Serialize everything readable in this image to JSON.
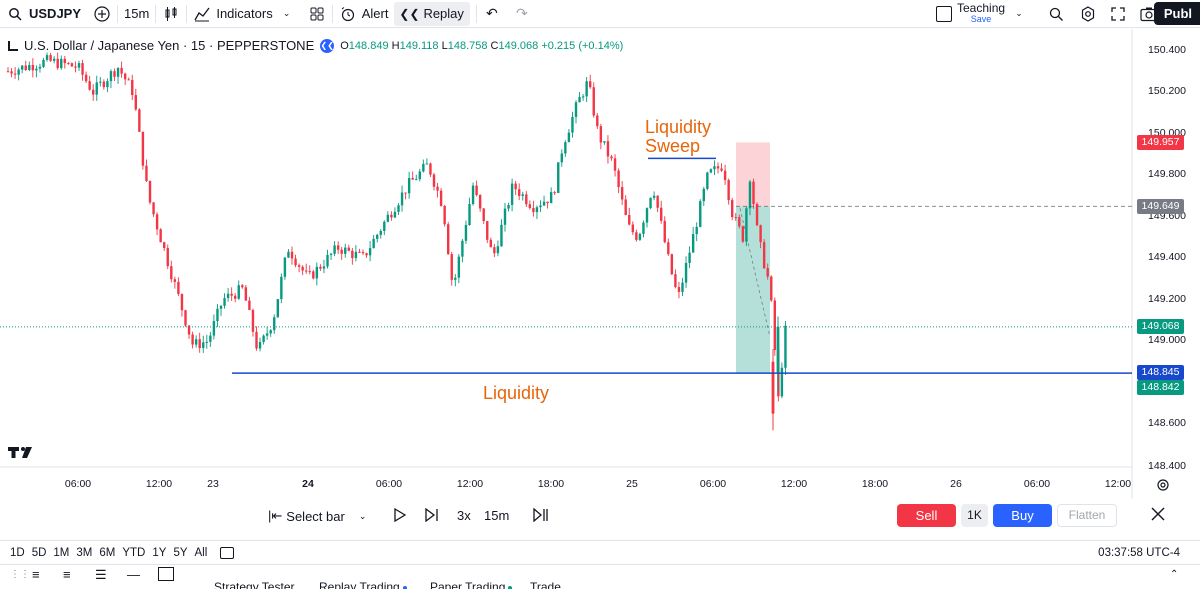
{
  "topbar": {
    "symbol": "USDJPY",
    "interval": "15m",
    "indicators_label": "Indicators",
    "alert_label": "Alert",
    "replay_label": "Replay",
    "layout_name": "Teaching",
    "layout_status": "Save",
    "publish_label": "Publ"
  },
  "legend": {
    "title": "U.S. Dollar / Japanese Yen · 15 · PEPPERSTONE",
    "open_key": "O",
    "open": "148.849",
    "high_key": "H",
    "high": "149.118",
    "low_key": "L",
    "low": "148.758",
    "close_key": "C",
    "close": "149.068",
    "change": "+0.215 (+0.14%)"
  },
  "annotations": {
    "sweep_line1": "Liquidity",
    "sweep_line2": "Sweep",
    "liquidity": "Liquidity"
  },
  "price_axis": {
    "ticks": [
      "150.400",
      "150.200",
      "150.000",
      "149.800",
      "149.600",
      "149.400",
      "149.200",
      "149.000",
      "148.600",
      "148.400"
    ],
    "tag_stop": "149.957",
    "tag_entry": "149.649",
    "tag_last": "149.068",
    "tag_line": "148.845",
    "tag_target": "148.842"
  },
  "time_axis": [
    "06:00",
    "12:00",
    "23",
    "24",
    "06:00",
    "12:00",
    "18:00",
    "25",
    "06:00",
    "12:00",
    "18:00",
    "26",
    "06:00",
    "12:00"
  ],
  "replay_bar": {
    "select_bar": "Select bar",
    "speed": "3x",
    "interval": "15m",
    "sell": "Sell",
    "quantity": "1K",
    "buy": "Buy",
    "flatten": "Flatten"
  },
  "range_bar": {
    "ranges": [
      "1D",
      "5D",
      "1M",
      "3M",
      "6M",
      "YTD",
      "1Y",
      "5Y",
      "All"
    ],
    "clock": "03:37:58 UTC-4"
  },
  "bottom_tabs": [
    "Strategy Tester",
    "Replay Trading",
    "Paper Trading",
    "Trade"
  ],
  "colors": {
    "up": "#089981",
    "down": "#f23645",
    "liquidity_line": "#1848cc",
    "annotation": "#e8650a",
    "accent": "#2962ff"
  },
  "chart_data": {
    "type": "candlestick",
    "symbol": "USDJPY",
    "interval": "15m",
    "ylim": [
      148.4,
      150.45
    ],
    "last_price": 149.068,
    "liquidity_level": 148.845,
    "sweep_level": 149.88,
    "position": {
      "stop": 149.957,
      "entry": 149.649,
      "target": 148.842
    },
    "path_keypoints": [
      [
        0,
        150.3
      ],
      [
        40,
        150.35
      ],
      [
        70,
        150.32
      ],
      [
        85,
        150.2
      ],
      [
        110,
        150.32
      ],
      [
        125,
        150.2
      ],
      [
        140,
        149.7
      ],
      [
        165,
        149.3
      ],
      [
        185,
        148.98
      ],
      [
        200,
        149.0
      ],
      [
        215,
        149.2
      ],
      [
        235,
        149.25
      ],
      [
        250,
        148.95
      ],
      [
        265,
        149.1
      ],
      [
        280,
        149.45
      ],
      [
        300,
        149.3
      ],
      [
        330,
        149.45
      ],
      [
        355,
        149.4
      ],
      [
        380,
        149.6
      ],
      [
        400,
        149.75
      ],
      [
        420,
        149.85
      ],
      [
        435,
        149.65
      ],
      [
        445,
        149.25
      ],
      [
        465,
        149.75
      ],
      [
        485,
        149.4
      ],
      [
        505,
        149.75
      ],
      [
        525,
        149.65
      ],
      [
        545,
        149.7
      ],
      [
        555,
        149.95
      ],
      [
        570,
        150.15
      ],
      [
        580,
        150.25
      ],
      [
        590,
        150.0
      ],
      [
        605,
        149.85
      ],
      [
        620,
        149.55
      ],
      [
        630,
        149.5
      ],
      [
        645,
        149.75
      ],
      [
        660,
        149.4
      ],
      [
        670,
        149.2
      ],
      [
        690,
        149.6
      ],
      [
        700,
        149.8
      ],
      [
        715,
        149.85
      ],
      [
        725,
        149.6
      ],
      [
        735,
        149.5
      ],
      [
        742,
        149.8
      ],
      [
        750,
        149.5
      ],
      [
        760,
        149.3
      ],
      [
        765,
        149.1
      ],
      [
        770,
        148.7
      ],
      [
        775,
        148.95
      ],
      [
        778,
        149.07
      ]
    ]
  }
}
